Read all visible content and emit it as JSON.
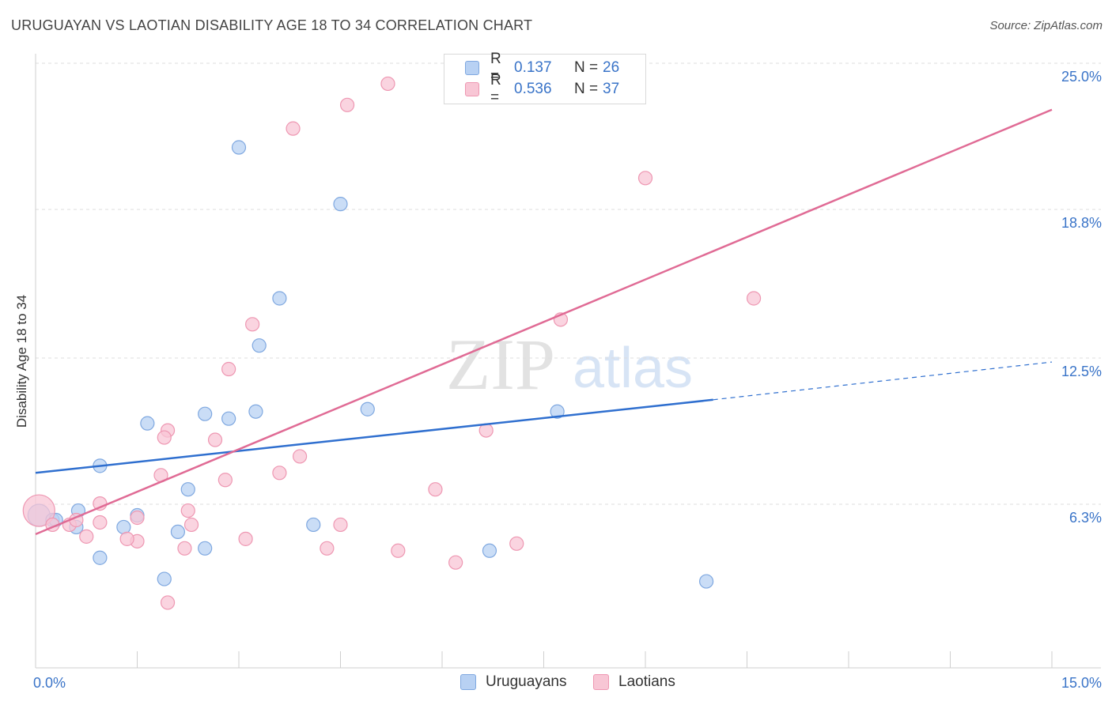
{
  "title": "URUGUAYAN VS LAOTIAN DISABILITY AGE 18 TO 34 CORRELATION CHART",
  "source": "Source: ZipAtlas.com",
  "watermark": {
    "zip": "ZIP",
    "atlas": "atlas"
  },
  "legend": {
    "series": [
      {
        "name": "Uruguayans",
        "r_label": "R =",
        "r_value": "0.137",
        "n_label": "N =",
        "n_value": "26"
      },
      {
        "name": "Laotians",
        "r_label": "R =",
        "r_value": "0.536",
        "n_label": "N =",
        "n_value": "37"
      }
    ]
  },
  "colors": {
    "uruguayans_fill": "#b8d1f3",
    "uruguayans_stroke": "#7fa8e0",
    "uruguayans_line": "#2f6fcf",
    "laotians_fill": "#f8c6d5",
    "laotians_stroke": "#ee97b2",
    "laotians_line": "#e06b95",
    "tick_label": "#3a74c8",
    "grid": "#dddddd"
  },
  "chart_data": {
    "type": "scatter",
    "title": "URUGUAYAN VS LAOTIAN DISABILITY AGE 18 TO 34 CORRELATION CHART",
    "xlabel": "",
    "ylabel": "Disability Age 18 to 34",
    "xlim": [
      0,
      15
    ],
    "ylim": [
      0,
      25.5
    ],
    "x_tick_labels": [
      {
        "value": 0,
        "label": "0.0%"
      },
      {
        "value": 15,
        "label": "15.0%"
      }
    ],
    "y_tick_labels": [
      {
        "value": 6.3,
        "label": "6.3%"
      },
      {
        "value": 12.5,
        "label": "12.5%"
      },
      {
        "value": 18.8,
        "label": "18.8%"
      },
      {
        "value": 25.0,
        "label": "25.0%"
      }
    ],
    "series": [
      {
        "name": "Uruguayans",
        "points": [
          [
            0.05,
            6.4
          ],
          [
            0.25,
            6.2
          ],
          [
            0.3,
            6.2
          ],
          [
            0.63,
            6.6
          ],
          [
            0.95,
            8.5
          ],
          [
            1.65,
            10.3
          ],
          [
            2.1,
            5.7
          ],
          [
            2.5,
            5.0
          ],
          [
            2.5,
            10.7
          ],
          [
            3.0,
            22.0
          ],
          [
            2.85,
            10.5
          ],
          [
            3.3,
            13.6
          ],
          [
            3.25,
            10.8
          ],
          [
            3.6,
            15.6
          ],
          [
            0.6,
            5.9
          ],
          [
            0.95,
            4.6
          ],
          [
            1.3,
            5.9
          ],
          [
            1.5,
            6.4
          ],
          [
            1.9,
            3.7
          ],
          [
            2.25,
            7.5
          ],
          [
            4.1,
            6.0
          ],
          [
            4.9,
            10.9
          ],
          [
            4.5,
            19.6
          ],
          [
            6.7,
            4.9
          ],
          [
            7.7,
            10.8
          ],
          [
            9.9,
            3.6
          ]
        ],
        "trend": {
          "x0": 0,
          "y0": 8.2,
          "x1": 10.0,
          "y1": 11.3,
          "dashed_to_x": 15,
          "dashed_to_y": 12.9
        }
      },
      {
        "name": "Laotians",
        "points": [
          [
            0.05,
            6.6
          ],
          [
            0.25,
            6.0
          ],
          [
            0.5,
            6.0
          ],
          [
            0.6,
            6.2
          ],
          [
            0.75,
            5.5
          ],
          [
            0.95,
            6.9
          ],
          [
            0.95,
            6.1
          ],
          [
            1.5,
            5.3
          ],
          [
            1.35,
            5.4
          ],
          [
            1.5,
            6.3
          ],
          [
            1.85,
            8.1
          ],
          [
            1.95,
            10.0
          ],
          [
            1.9,
            9.7
          ],
          [
            2.2,
            5.0
          ],
          [
            2.3,
            6.0
          ],
          [
            2.25,
            6.6
          ],
          [
            2.8,
            7.9
          ],
          [
            2.65,
            9.6
          ],
          [
            2.85,
            12.6
          ],
          [
            3.1,
            5.4
          ],
          [
            3.2,
            14.5
          ],
          [
            3.6,
            8.2
          ],
          [
            3.9,
            8.9
          ],
          [
            3.8,
            22.8
          ],
          [
            4.3,
            5.0
          ],
          [
            4.5,
            6.0
          ],
          [
            4.6,
            23.8
          ],
          [
            5.2,
            24.7
          ],
          [
            5.9,
            7.5
          ],
          [
            6.65,
            10.0
          ],
          [
            7.1,
            5.2
          ],
          [
            7.75,
            14.7
          ],
          [
            9.0,
            20.7
          ],
          [
            10.6,
            15.6
          ],
          [
            5.35,
            4.9
          ],
          [
            1.95,
            2.7
          ],
          [
            6.2,
            4.4
          ]
        ],
        "trend": {
          "x0": 0,
          "y0": 5.6,
          "x1": 15,
          "y1": 23.6
        }
      }
    ]
  }
}
